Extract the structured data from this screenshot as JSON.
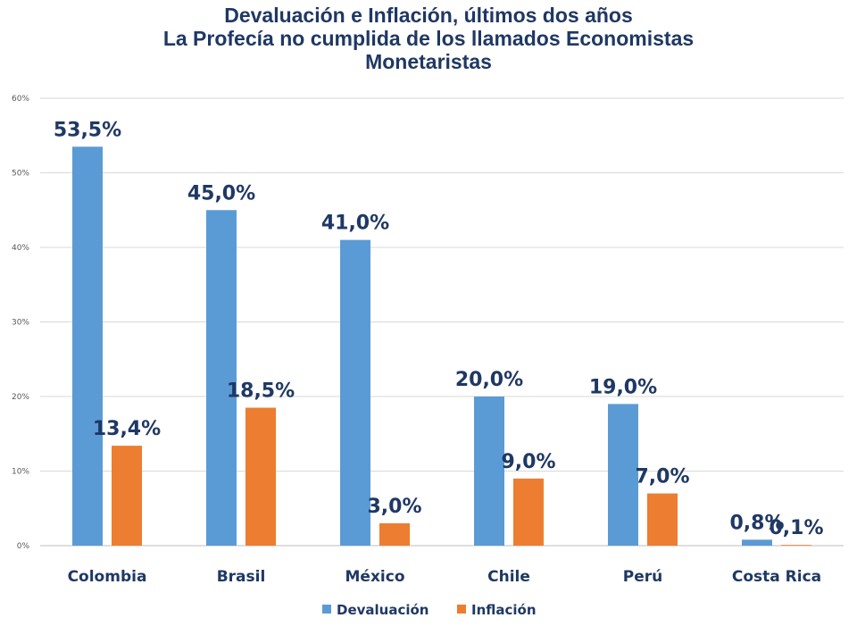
{
  "chart_data": {
    "type": "bar",
    "title": "Devaluación e Inflación, últimos dos años",
    "subtitle": "La Profecía no cumplida de los llamados Economistas Monetaristas",
    "categories": [
      "Colombia",
      "Brasil",
      "México",
      "Chile",
      "Perú",
      "Costa Rica"
    ],
    "series": [
      {
        "name": "Devaluación",
        "color": "#5b9bd5",
        "values": [
          53.5,
          45.0,
          41.0,
          20.0,
          19.0,
          0.8
        ],
        "labels": [
          "53,5%",
          "45,0%",
          "41,0%",
          "20,0%",
          "19,0%",
          "0,8%"
        ]
      },
      {
        "name": "Inflación",
        "color": "#ed7d31",
        "values": [
          13.4,
          18.5,
          3.0,
          9.0,
          7.0,
          0.1
        ],
        "labels": [
          "13,4%",
          "18,5%",
          "3,0%",
          "9,0%",
          "7,0%",
          "0,1%"
        ]
      }
    ],
    "yticks": [
      "0%",
      "10%",
      "20%",
      "30%",
      "40%",
      "50%",
      "60%"
    ],
    "ylim": [
      0,
      60
    ],
    "grid": true,
    "legend_position": "bottom"
  },
  "title_lines": [
    "Devaluación e Inflación, últimos dos años",
    "La Profecía no cumplida de los llamados Economistas",
    "Monetaristas"
  ]
}
